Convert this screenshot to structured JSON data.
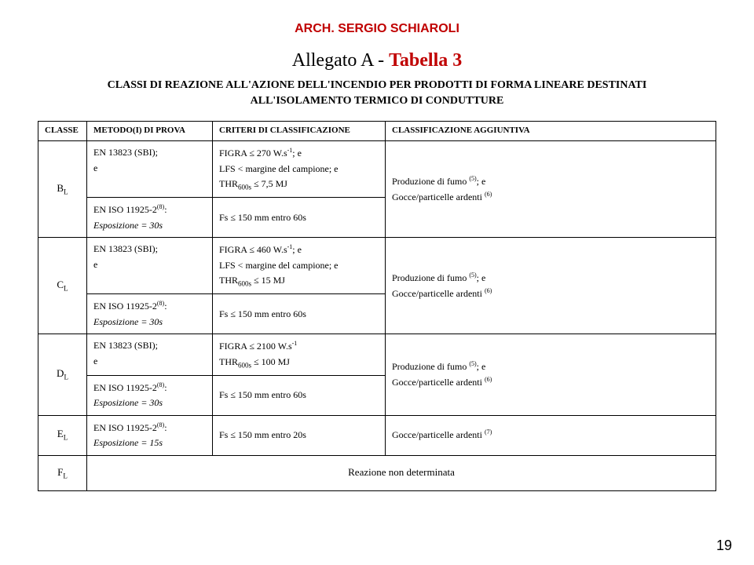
{
  "header": "ARCH. SERGIO SCHIAROLI",
  "header_color": "#c00000",
  "title_plain": "Allegato A - ",
  "title_red": "Tabella 3",
  "subtitle_line1": "CLASSI DI REAZIONE ALL'AZIONE DELL'INCENDIO PER PRODOTTI DI FORMA LINEARE DESTINATI",
  "subtitle_line2": "ALL'ISOLAMENTO TERMICO DI CONDUTTURE",
  "columns": {
    "classe": "CLASSE",
    "metodo": "METODO(I) DI PROVA",
    "criteri": "CRITERI DI CLASSIFICAZIONE",
    "agg": "CLASSIFICAZIONE AGGIUNTIVA"
  },
  "rows": {
    "B": {
      "classe_base": "B",
      "classe_sub": "L",
      "metodo_a1": "EN 13823 (SBI);",
      "metodo_a2": "e",
      "metodo_b1a": "EN ISO 11925-2",
      "metodo_b1b": ":",
      "metodo_b2": "Esposizione = 30s",
      "criteri_a1a": "FIGRA ≤ 270 W.s",
      "criteri_a1b": "; e",
      "criteri_a2": "LFS < margine del campione; e",
      "criteri_a3a": "THR",
      "criteri_a3b": " ≤ 7,5 MJ",
      "criteri_b1": "Fs ≤ 150 mm entro 60s",
      "agg_1a": "Produzione di fumo ",
      "agg_1b": "; e",
      "agg_2": "Gocce/particelle ardenti "
    },
    "C": {
      "classe_base": "C",
      "classe_sub": "L",
      "metodo_a1": "EN 13823 (SBI);",
      "metodo_a2": "e",
      "metodo_b1a": "EN ISO 11925-2",
      "metodo_b1b": ":",
      "metodo_b2": "Esposizione = 30s",
      "criteri_a1a": "FIGRA ≤ 460 W.s",
      "criteri_a1b": "; e",
      "criteri_a2": "LFS < margine del campione; e",
      "criteri_a3a": "THR",
      "criteri_a3b": " ≤ 15 MJ",
      "criteri_b1": "Fs ≤ 150 mm entro 60s",
      "agg_1a": "Produzione di fumo ",
      "agg_1b": "; e",
      "agg_2": "Gocce/particelle ardenti "
    },
    "D": {
      "classe_base": "D",
      "classe_sub": "L",
      "metodo_a1": "EN 13823 (SBI);",
      "metodo_a2": "e",
      "metodo_b1a": "EN ISO 11925-2",
      "metodo_b1b": ":",
      "metodo_b2": "Esposizione = 30s",
      "criteri_a1a": "FIGRA ≤ 2100 W.s",
      "criteri_a2a": "THR",
      "criteri_a2b": " ≤ 100 MJ",
      "criteri_b1": "Fs ≤ 150 mm entro 60s",
      "agg_1a": "Produzione di fumo ",
      "agg_1b": "; e",
      "agg_2": "Gocce/particelle ardenti "
    },
    "E": {
      "classe_base": "E",
      "classe_sub": "L",
      "metodo_a1a": "EN ISO 11925-2",
      "metodo_a1b": ":",
      "metodo_a2": "Esposizione = 15s",
      "criteri_a1": "Fs ≤ 150 mm entro 20s",
      "agg_1": "Gocce/particelle ardenti "
    },
    "F": {
      "classe_base": "F",
      "classe_sub": "L",
      "text": "Reazione non determinata"
    }
  },
  "sup_neg1": "-1",
  "sup_8": "(8)",
  "sup_5": "(5)",
  "sup_6": "(6)",
  "sup_7": "(7)",
  "sub_600s": "600s",
  "page_number": "19"
}
